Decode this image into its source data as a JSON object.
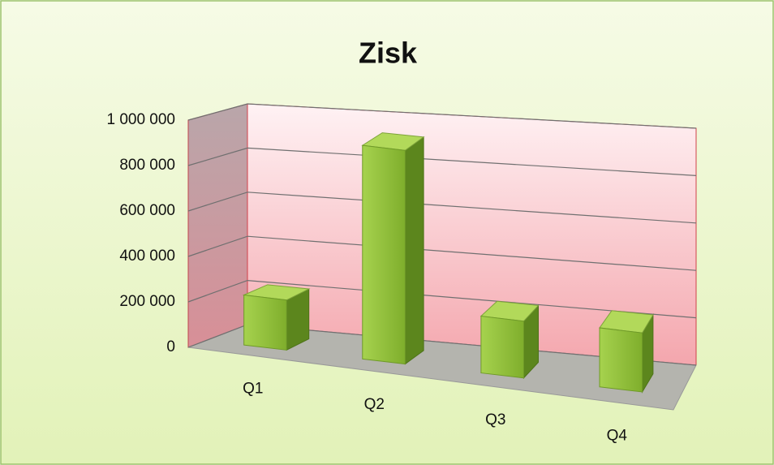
{
  "chart_data": {
    "type": "bar3d",
    "title": "Zisk",
    "categories": [
      "Q1",
      "Q2",
      "Q3",
      "Q4"
    ],
    "values": [
      220000,
      940000,
      250000,
      260000
    ],
    "color": "#8cbf3a",
    "ylim": [
      0,
      1000000
    ],
    "yticks": [
      0,
      {
        "value": 200000,
        "label": "200 000"
      },
      {
        "value": 400000,
        "label": "400 000"
      },
      {
        "value": 600000,
        "label": "600 000"
      },
      {
        "value": 800000,
        "label": "800 000"
      },
      {
        "value": 1000000,
        "label": "1 000 000"
      }
    ],
    "grid": true
  }
}
